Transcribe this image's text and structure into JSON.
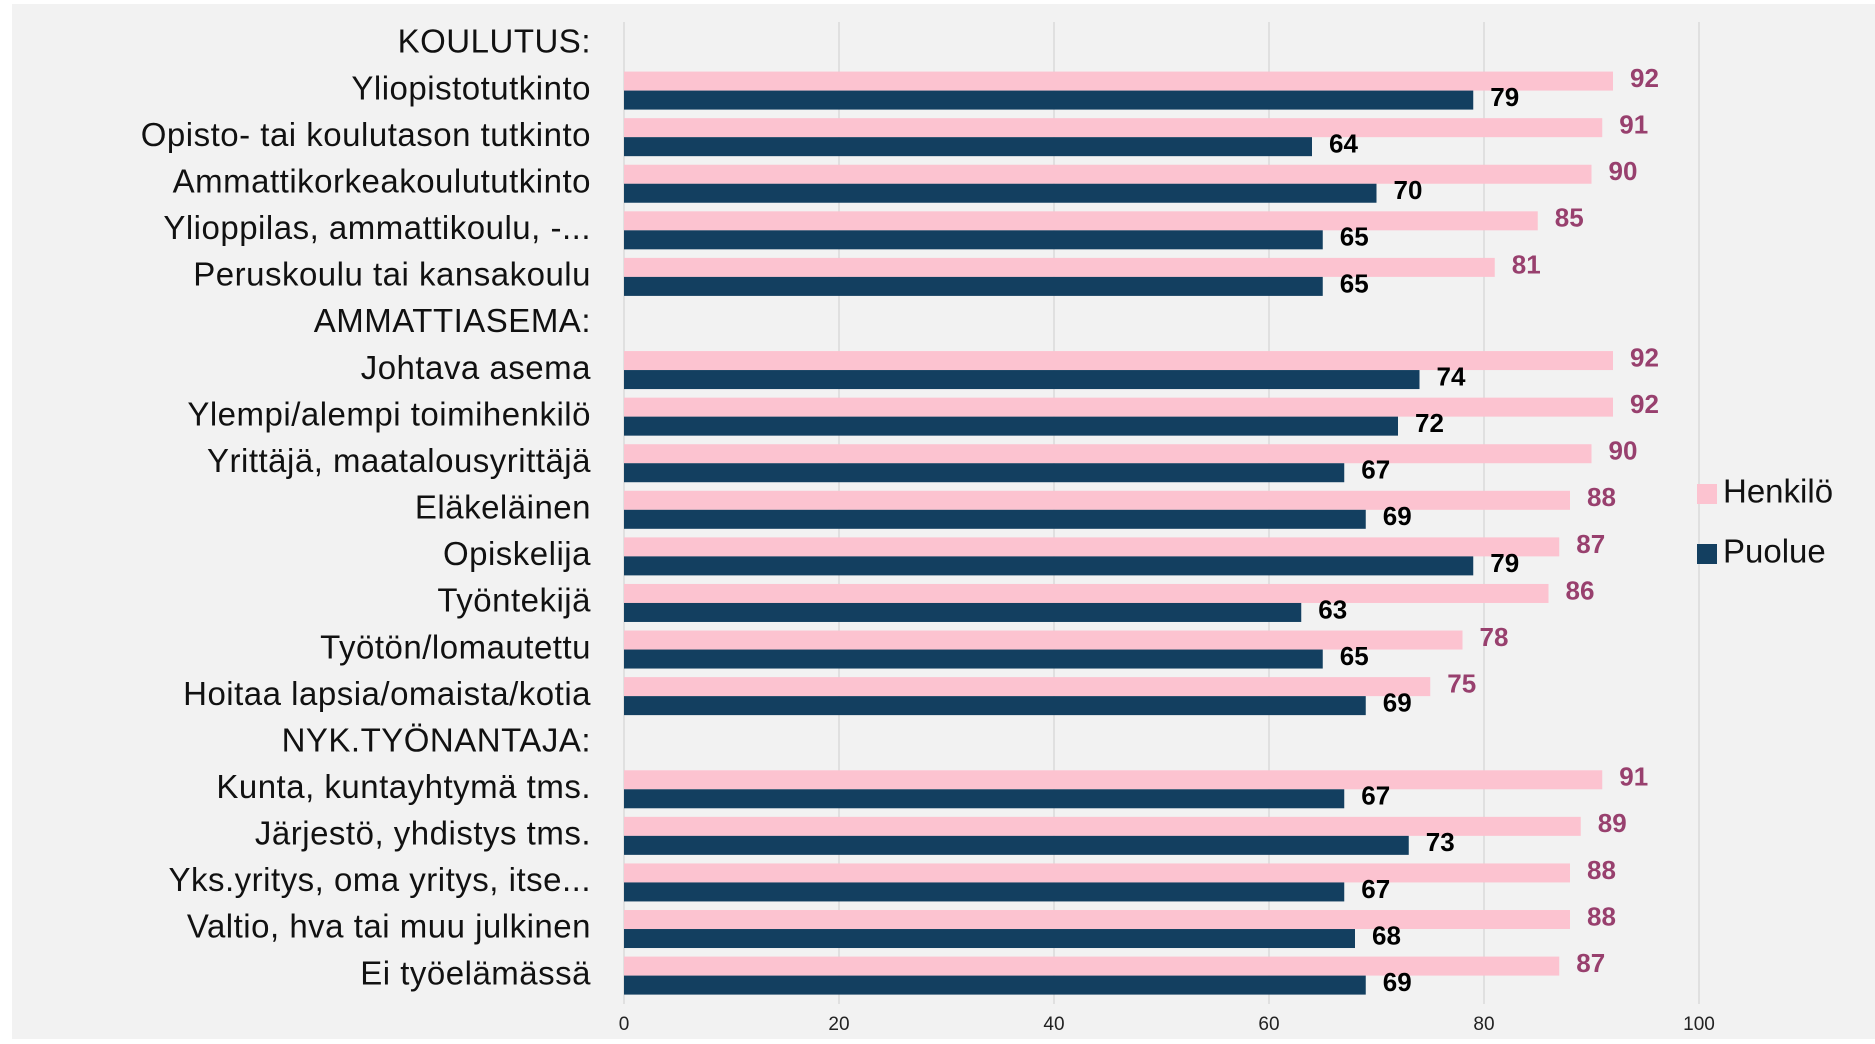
{
  "chart_data": {
    "type": "bar",
    "orientation": "horizontal",
    "categories": [
      "KOULUTUS:",
      "Yliopistotutkinto",
      "Opisto- tai koulutason tutkinto",
      "Ammattikorkeakoulututkinto",
      "Ylioppilas, ammattikoulu, -...",
      "Peruskoulu tai kansakoulu",
      "AMMATTIASEMA:",
      "Johtava asema",
      "Ylempi/alempi toimihenkilö",
      "Yrittäjä, maatalousyrittäjä",
      "Eläkeläinen",
      "Opiskelija",
      "Työntekijä",
      "Työtön/lomautettu",
      "Hoitaa lapsia/omaista/kotia",
      "NYK.TYÖNANTAJA:",
      "Kunta, kuntayhtymä tms.",
      "Järjestö, yhdistys tms.",
      "Yks.yritys, oma yritys, itse...",
      "Valtio, hva tai muu julkinen",
      "Ei työelämässä"
    ],
    "series": [
      {
        "name": "Henkilö",
        "color": "#fcc3d0",
        "label_color": "#98406e",
        "values": [
          null,
          92,
          91,
          90,
          85,
          81,
          null,
          92,
          92,
          90,
          88,
          87,
          86,
          78,
          75,
          null,
          91,
          89,
          88,
          88,
          87
        ]
      },
      {
        "name": "Puolue",
        "color": "#133f60",
        "label_color": "#000000",
        "values": [
          null,
          79,
          64,
          70,
          65,
          65,
          null,
          74,
          72,
          67,
          69,
          79,
          63,
          65,
          69,
          null,
          67,
          73,
          67,
          68,
          69
        ]
      }
    ],
    "xlim": [
      0,
      100
    ],
    "xticks": [
      0,
      20,
      40,
      60,
      80,
      100
    ],
    "grid": true,
    "legend": "right"
  }
}
